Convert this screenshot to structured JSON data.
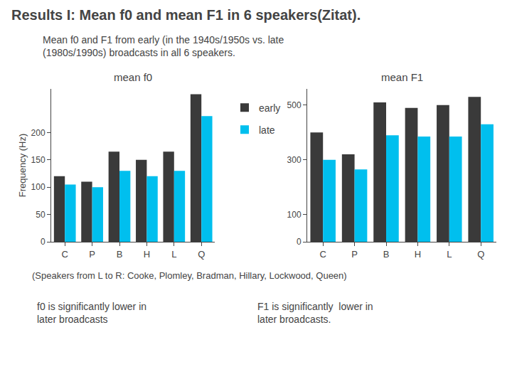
{
  "title": "Results I: Mean f0 and mean F1 in 6 speakers(Zitat).",
  "subtitle": "Mean f0 and F1 from early (in the 1940s/1950s vs. late\n(1980s/1990s) broadcasts in all 6 speakers.",
  "annotations": [
    "(Speakers from L to R: Cooke, Plomley, Bradman, Hillary, Lockwood, Queen)",
    "f0 is significantly lower in\nlater broadcasts",
    "F1 is significantly  lower in\nlater broadcasts."
  ],
  "chart_data": [
    {
      "type": "bar",
      "title": "mean f0",
      "ylabel": "Frequency (Hz)",
      "categories": [
        "C",
        "P",
        "B",
        "H",
        "L",
        "Q"
      ],
      "series": [
        {
          "name": "early",
          "color": "#3a3a3a",
          "values": [
            120,
            110,
            165,
            150,
            165,
            270
          ]
        },
        {
          "name": "late",
          "color": "#00bfee",
          "values": [
            105,
            100,
            130,
            120,
            130,
            230
          ]
        }
      ],
      "ylim": [
        0,
        280
      ],
      "yticks": [
        0,
        50,
        100,
        150,
        200
      ],
      "grid": false,
      "legend": "right"
    },
    {
      "type": "bar",
      "title": "mean F1",
      "categories": [
        "C",
        "P",
        "B",
        "H",
        "L",
        "Q"
      ],
      "series": [
        {
          "name": "early",
          "color": "#3a3a3a",
          "values": [
            400,
            320,
            510,
            490,
            500,
            530
          ]
        },
        {
          "name": "late",
          "color": "#00bfee",
          "values": [
            300,
            265,
            390,
            385,
            385,
            430
          ]
        }
      ],
      "ylim": [
        0,
        560
      ],
      "yticks": [
        0,
        100,
        300,
        500
      ],
      "grid": false
    }
  ]
}
